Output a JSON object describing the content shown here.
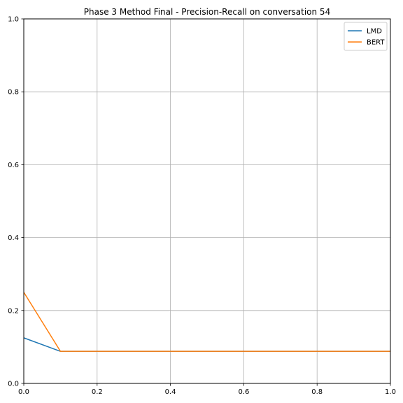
{
  "chart_data": {
    "type": "line",
    "title": "Phase 3 Method Final - Precision-Recall on conversation 54",
    "xlabel": "",
    "ylabel": "",
    "xlim": [
      0,
      1
    ],
    "ylim": [
      0,
      1
    ],
    "x_ticks": [
      "0.0",
      "0.2",
      "0.4",
      "0.6",
      "0.8",
      "1.0"
    ],
    "y_ticks": [
      "0.0",
      "0.2",
      "0.4",
      "0.6",
      "0.8",
      "1.0"
    ],
    "grid": true,
    "legend_position": "top-right",
    "series": [
      {
        "name": "LMD",
        "color": "#1f77b4",
        "x": [
          0.0,
          0.1,
          0.2,
          0.3,
          0.4,
          0.5,
          0.6,
          0.7,
          0.8,
          0.9,
          1.0
        ],
        "y": [
          0.125,
          0.088,
          0.088,
          0.088,
          0.088,
          0.088,
          0.088,
          0.088,
          0.088,
          0.088,
          0.088
        ]
      },
      {
        "name": "BERT",
        "color": "#ff7f0e",
        "x": [
          0.0,
          0.1,
          0.2,
          0.3,
          0.4,
          0.5,
          0.6,
          0.7,
          0.8,
          0.9,
          1.0
        ],
        "y": [
          0.25,
          0.088,
          0.088,
          0.088,
          0.088,
          0.088,
          0.088,
          0.088,
          0.088,
          0.088,
          0.088
        ]
      }
    ]
  }
}
